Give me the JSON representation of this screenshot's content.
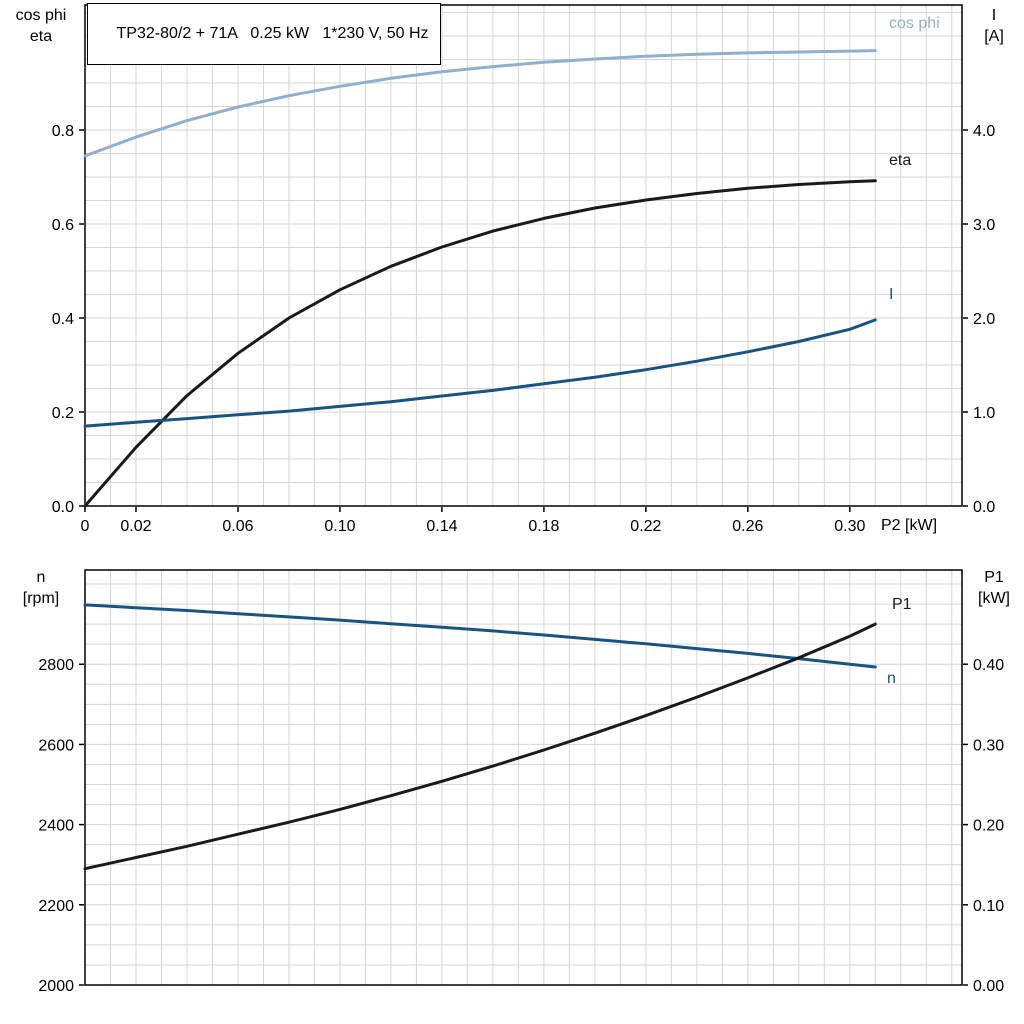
{
  "colors": {
    "grid": "#d6d6d6",
    "border": "#000000",
    "cos_phi": "#8fafce",
    "dark_blue": "#175480",
    "black_curve": "#1a1a1a"
  },
  "axis_corner_labels": {
    "top_left": [
      "cos phi",
      "eta"
    ],
    "top_right": [
      "I",
      "[A]"
    ],
    "bottom_left": [
      "n",
      "[rpm]"
    ],
    "bottom_right": [
      "P1",
      "[kW]"
    ]
  },
  "chart_data": [
    {
      "type": "line",
      "title": "TP32-80/2 + 71A   0.25 kW   1*230 V, 50 Hz",
      "grid": true,
      "legend": "inline-labels",
      "x_axis": {
        "label": "P2 [kW]",
        "min": 0,
        "max": 0.344,
        "grid_step": 0.01,
        "ticks": [
          {
            "v": 0,
            "label": "0"
          },
          {
            "v": 0.02,
            "label": "0.02"
          },
          {
            "v": 0.06,
            "label": "0.06"
          },
          {
            "v": 0.1,
            "label": "0.10"
          },
          {
            "v": 0.14,
            "label": "0.14"
          },
          {
            "v": 0.18,
            "label": "0.18"
          },
          {
            "v": 0.22,
            "label": "0.22"
          },
          {
            "v": 0.26,
            "label": "0.26"
          },
          {
            "v": 0.3,
            "label": "0.30"
          }
        ]
      },
      "y_left": {
        "label": "cos phi / eta",
        "min": 0,
        "max": 1.066,
        "grid_step": 0.05,
        "ticks": [
          {
            "v": 0.0,
            "label": "0.0"
          },
          {
            "v": 0.2,
            "label": "0.2"
          },
          {
            "v": 0.4,
            "label": "0.4"
          },
          {
            "v": 0.6,
            "label": "0.6"
          },
          {
            "v": 0.8,
            "label": "0.8"
          }
        ]
      },
      "y_right": {
        "label": "I [A]",
        "min": 0,
        "max": 5.33,
        "ticks": [
          {
            "v": 0.0,
            "label": "0.0"
          },
          {
            "v": 1.0,
            "label": "1.0"
          },
          {
            "v": 2.0,
            "label": "2.0"
          },
          {
            "v": 3.0,
            "label": "3.0"
          },
          {
            "v": 4.0,
            "label": "4.0"
          }
        ]
      },
      "series": [
        {
          "name": "cos phi",
          "axis": "left",
          "color": "#8fafce",
          "x": [
            0,
            0.02,
            0.04,
            0.06,
            0.08,
            0.1,
            0.12,
            0.14,
            0.16,
            0.18,
            0.2,
            0.22,
            0.24,
            0.26,
            0.28,
            0.3,
            0.31
          ],
          "y": [
            0.745,
            0.785,
            0.82,
            0.849,
            0.873,
            0.893,
            0.91,
            0.924,
            0.935,
            0.944,
            0.951,
            0.957,
            0.961,
            0.964,
            0.966,
            0.968,
            0.969
          ]
        },
        {
          "name": "eta",
          "axis": "left",
          "color": "#1a1a1a",
          "x": [
            0,
            0.02,
            0.04,
            0.06,
            0.08,
            0.1,
            0.12,
            0.14,
            0.16,
            0.18,
            0.2,
            0.22,
            0.24,
            0.26,
            0.28,
            0.3,
            0.31
          ],
          "y": [
            0,
            0.125,
            0.235,
            0.325,
            0.4,
            0.46,
            0.51,
            0.551,
            0.585,
            0.612,
            0.634,
            0.651,
            0.665,
            0.676,
            0.684,
            0.69,
            0.692
          ]
        },
        {
          "name": "I",
          "axis": "right",
          "color": "#175480",
          "x": [
            0,
            0.02,
            0.04,
            0.06,
            0.08,
            0.1,
            0.12,
            0.14,
            0.16,
            0.18,
            0.2,
            0.22,
            0.24,
            0.26,
            0.28,
            0.3,
            0.31
          ],
          "y": [
            0.85,
            0.89,
            0.93,
            0.97,
            1.01,
            1.06,
            1.11,
            1.17,
            1.23,
            1.3,
            1.37,
            1.45,
            1.54,
            1.64,
            1.75,
            1.88,
            1.98
          ]
        }
      ]
    },
    {
      "type": "line",
      "title": "",
      "grid": true,
      "legend": "inline-labels",
      "x_axis": {
        "label": "",
        "min": 0,
        "max": 0.344,
        "grid_step": 0.01,
        "ticks": []
      },
      "y_left": {
        "label": "n [rpm]",
        "min": 2000,
        "max": 3035,
        "grid_step": 50,
        "ticks": [
          {
            "v": 2000,
            "label": "2000"
          },
          {
            "v": 2200,
            "label": "2200"
          },
          {
            "v": 2400,
            "label": "2400"
          },
          {
            "v": 2600,
            "label": "2600"
          },
          {
            "v": 2800,
            "label": "2800"
          }
        ]
      },
      "y_right": {
        "label": "P1 [kW]",
        "min": 0,
        "max": 0.5175,
        "ticks": [
          {
            "v": 0.0,
            "label": "0.00"
          },
          {
            "v": 0.1,
            "label": "0.10"
          },
          {
            "v": 0.2,
            "label": "0.20"
          },
          {
            "v": 0.3,
            "label": "0.30"
          },
          {
            "v": 0.4,
            "label": "0.40"
          }
        ]
      },
      "series": [
        {
          "name": "n",
          "axis": "left",
          "color": "#175480",
          "x": [
            0,
            0.02,
            0.04,
            0.06,
            0.08,
            0.1,
            0.12,
            0.14,
            0.16,
            0.18,
            0.2,
            0.22,
            0.24,
            0.26,
            0.28,
            0.3,
            0.31
          ],
          "y": [
            2948,
            2941,
            2934,
            2926,
            2918,
            2910,
            2901,
            2892,
            2883,
            2873,
            2862,
            2851,
            2839,
            2827,
            2814,
            2800,
            2793
          ]
        },
        {
          "name": "P1",
          "axis": "right",
          "color": "#1a1a1a",
          "x": [
            0,
            0.02,
            0.04,
            0.06,
            0.08,
            0.1,
            0.12,
            0.14,
            0.16,
            0.18,
            0.2,
            0.22,
            0.24,
            0.26,
            0.28,
            0.3,
            0.31
          ],
          "y": [
            0.145,
            0.159,
            0.173,
            0.188,
            0.203,
            0.219,
            0.236,
            0.254,
            0.273,
            0.293,
            0.314,
            0.336,
            0.359,
            0.383,
            0.408,
            0.435,
            0.45
          ]
        }
      ]
    }
  ]
}
